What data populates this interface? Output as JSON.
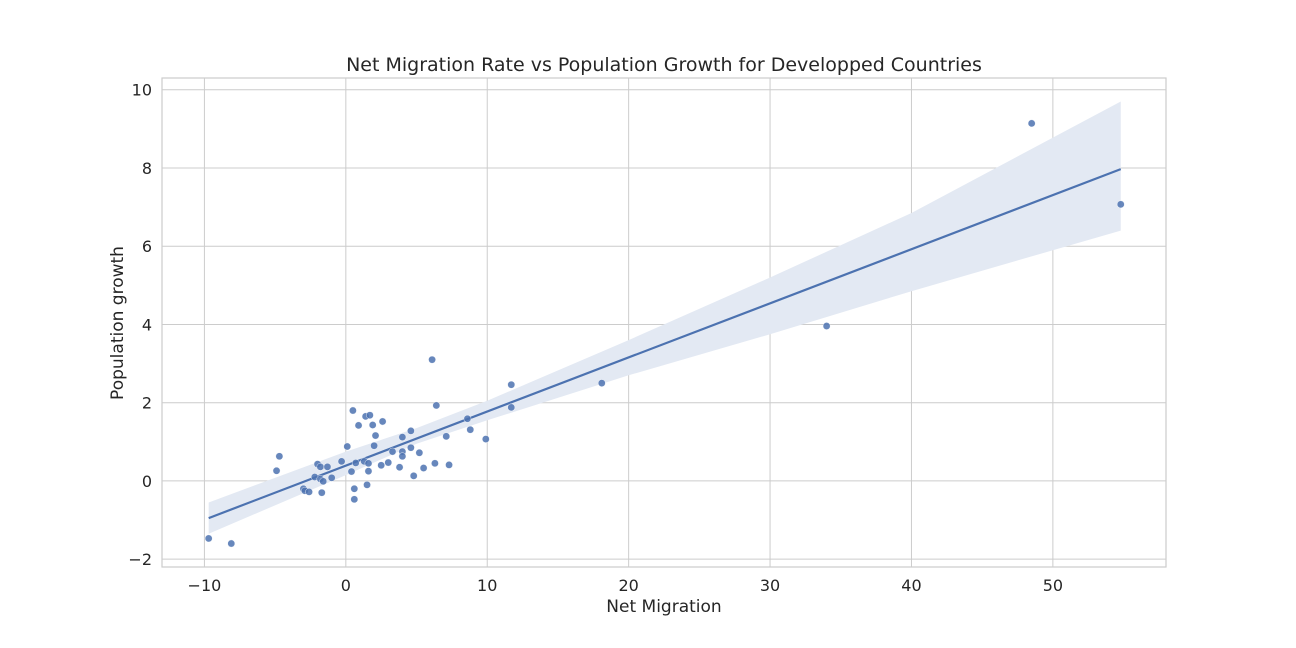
{
  "chart_data": {
    "type": "scatter",
    "title": "Net Migration Rate vs Population Growth for Developped Countries",
    "xlabel": "Net Migration",
    "ylabel": "Population growth",
    "xlim": [
      -13,
      58
    ],
    "ylim": [
      -2.2,
      10.3
    ],
    "xticks": [
      -10,
      0,
      10,
      20,
      30,
      40,
      50
    ],
    "yticks": [
      -2,
      0,
      2,
      4,
      6,
      8,
      10
    ],
    "xtick_labels": [
      "−10",
      "0",
      "10",
      "20",
      "30",
      "40",
      "50"
    ],
    "ytick_labels": [
      "−2",
      "0",
      "2",
      "4",
      "6",
      "8",
      "10"
    ],
    "grid": true,
    "legend": "none",
    "colors": {
      "points": "#4c72b0",
      "line": "#4c72b0",
      "ci_band": "#e3e9f3",
      "grid": "#cccccc",
      "frame": "#cccccc"
    },
    "points": [
      {
        "x": -9.7,
        "y": -1.47
      },
      {
        "x": -8.1,
        "y": -1.6
      },
      {
        "x": -4.7,
        "y": 0.63
      },
      {
        "x": -4.9,
        "y": 0.26
      },
      {
        "x": -3.0,
        "y": -0.2
      },
      {
        "x": -2.9,
        "y": -0.25
      },
      {
        "x": -2.6,
        "y": -0.28
      },
      {
        "x": -2.2,
        "y": 0.1
      },
      {
        "x": -2.0,
        "y": 0.43
      },
      {
        "x": -1.8,
        "y": 0.36
      },
      {
        "x": -1.8,
        "y": 0.05
      },
      {
        "x": -1.7,
        "y": -0.3
      },
      {
        "x": -1.6,
        "y": -0.01
      },
      {
        "x": -1.3,
        "y": 0.36
      },
      {
        "x": -1.0,
        "y": 0.08
      },
      {
        "x": -0.3,
        "y": 0.5
      },
      {
        "x": 0.1,
        "y": 0.88
      },
      {
        "x": 0.4,
        "y": 0.24
      },
      {
        "x": 0.5,
        "y": 1.8
      },
      {
        "x": 0.6,
        "y": -0.2
      },
      {
        "x": 0.7,
        "y": 0.46
      },
      {
        "x": 0.6,
        "y": -0.47
      },
      {
        "x": 0.9,
        "y": 1.42
      },
      {
        "x": 1.3,
        "y": 0.5
      },
      {
        "x": 1.4,
        "y": 1.65
      },
      {
        "x": 1.5,
        "y": -0.1
      },
      {
        "x": 1.6,
        "y": 0.45
      },
      {
        "x": 1.7,
        "y": 1.68
      },
      {
        "x": 1.6,
        "y": 0.25
      },
      {
        "x": 1.9,
        "y": 1.43
      },
      {
        "x": 2.0,
        "y": 0.9
      },
      {
        "x": 2.1,
        "y": 1.16
      },
      {
        "x": 2.5,
        "y": 0.4
      },
      {
        "x": 2.6,
        "y": 1.52
      },
      {
        "x": 3.0,
        "y": 0.47
      },
      {
        "x": 3.3,
        "y": 0.75
      },
      {
        "x": 3.8,
        "y": 0.35
      },
      {
        "x": 4.0,
        "y": 1.12
      },
      {
        "x": 4.0,
        "y": 0.75
      },
      {
        "x": 4.0,
        "y": 0.63
      },
      {
        "x": 4.6,
        "y": 1.28
      },
      {
        "x": 4.6,
        "y": 0.85
      },
      {
        "x": 4.8,
        "y": 0.13
      },
      {
        "x": 5.2,
        "y": 0.72
      },
      {
        "x": 5.5,
        "y": 0.33
      },
      {
        "x": 6.1,
        "y": 3.1
      },
      {
        "x": 6.3,
        "y": 0.45
      },
      {
        "x": 6.4,
        "y": 1.93
      },
      {
        "x": 7.1,
        "y": 1.14
      },
      {
        "x": 7.3,
        "y": 0.41
      },
      {
        "x": 8.6,
        "y": 1.59
      },
      {
        "x": 8.8,
        "y": 1.31
      },
      {
        "x": 9.9,
        "y": 1.07
      },
      {
        "x": 11.7,
        "y": 2.46
      },
      {
        "x": 11.7,
        "y": 1.88
      },
      {
        "x": 18.1,
        "y": 2.5
      },
      {
        "x": 34.0,
        "y": 3.96
      },
      {
        "x": 48.5,
        "y": 9.14
      },
      {
        "x": 54.8,
        "y": 7.07
      }
    ],
    "regression": {
      "x_start": -9.7,
      "x_end": 54.8,
      "y_start": -0.95,
      "y_end": 7.97
    },
    "confidence_band": [
      {
        "x": -9.7,
        "lower": -1.35,
        "upper": -0.55
      },
      {
        "x": 0.0,
        "lower": 0.15,
        "upper": 0.75
      },
      {
        "x": 5.0,
        "lower": 0.95,
        "upper": 1.35
      },
      {
        "x": 10.0,
        "lower": 1.55,
        "upper": 2.05
      },
      {
        "x": 20.0,
        "lower": 2.7,
        "upper": 3.6
      },
      {
        "x": 30.0,
        "lower": 3.75,
        "upper": 5.2
      },
      {
        "x": 40.0,
        "lower": 4.85,
        "upper": 6.85
      },
      {
        "x": 54.8,
        "lower": 6.4,
        "upper": 9.7
      }
    ]
  }
}
